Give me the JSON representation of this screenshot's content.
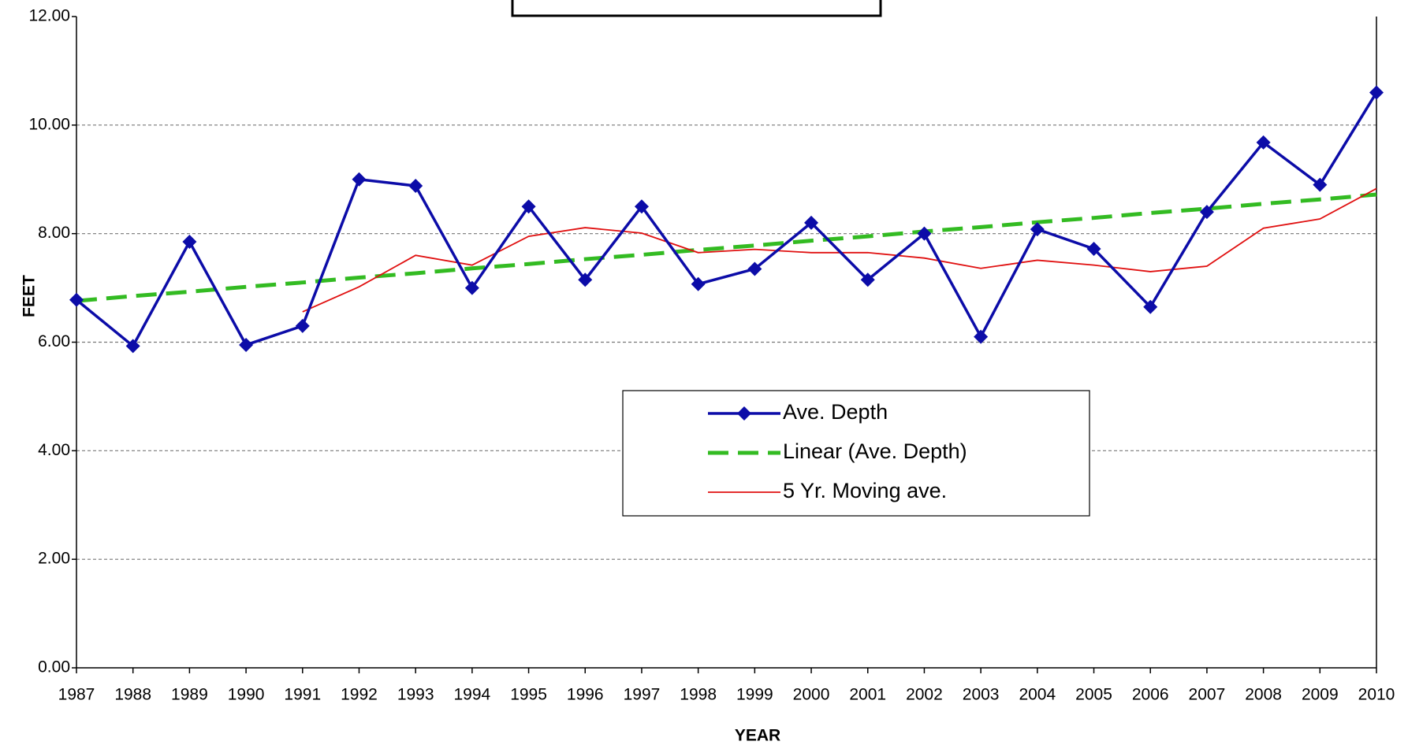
{
  "chart_data": {
    "type": "line",
    "x_label": "YEAR",
    "y_label": "FEET",
    "x": [
      1987,
      1988,
      1989,
      1990,
      1991,
      1992,
      1993,
      1994,
      1995,
      1996,
      1997,
      1998,
      1999,
      2000,
      2001,
      2002,
      2003,
      2004,
      2005,
      2006,
      2007,
      2008,
      2009,
      2010
    ],
    "xlim": [
      1987,
      2010
    ],
    "xticks": [
      1987,
      1988,
      1989,
      1990,
      1991,
      1992,
      1993,
      1994,
      1995,
      1996,
      1997,
      1998,
      1999,
      2000,
      2001,
      2002,
      2003,
      2004,
      2005,
      2006,
      2007,
      2008,
      2009,
      2010
    ],
    "ylim": [
      0,
      12
    ],
    "yticks": [
      {
        "value": 0,
        "label": "0.00"
      },
      {
        "value": 2,
        "label": "2.00"
      },
      {
        "value": 4,
        "label": "4.00"
      },
      {
        "value": 6,
        "label": "6.00"
      },
      {
        "value": 8,
        "label": "8.00"
      },
      {
        "value": 10,
        "label": "10.00"
      },
      {
        "value": 12,
        "label": "12.00"
      }
    ],
    "grid": true,
    "series": [
      {
        "name": "Ave. Depth",
        "color": "#0c0ca8",
        "style": "marker-line",
        "values": [
          6.78,
          5.93,
          7.85,
          5.95,
          6.3,
          9.0,
          8.88,
          7.0,
          8.5,
          7.15,
          8.5,
          7.07,
          7.35,
          8.2,
          7.15,
          8.0,
          6.1,
          8.08,
          7.72,
          6.65,
          8.4,
          9.68,
          8.9,
          10.6
        ]
      },
      {
        "name": "Linear (Ave. Depth)",
        "color": "#33bb22",
        "style": "dashed",
        "values": [
          6.76,
          6.85,
          6.93,
          7.02,
          7.1,
          7.19,
          7.27,
          7.36,
          7.44,
          7.53,
          7.61,
          7.7,
          7.78,
          7.87,
          7.95,
          8.04,
          8.12,
          8.21,
          8.29,
          8.38,
          8.46,
          8.55,
          8.63,
          8.72
        ]
      },
      {
        "name": "5 Yr. Moving ave.",
        "color": "#e01010",
        "style": "thin",
        "values": [
          null,
          null,
          null,
          null,
          6.56,
          7.02,
          7.6,
          7.42,
          7.95,
          8.11,
          8.01,
          7.65,
          7.71,
          7.65,
          7.65,
          7.55,
          7.36,
          7.51,
          7.42,
          7.3,
          7.4,
          8.1,
          8.27,
          8.83
        ]
      }
    ]
  }
}
